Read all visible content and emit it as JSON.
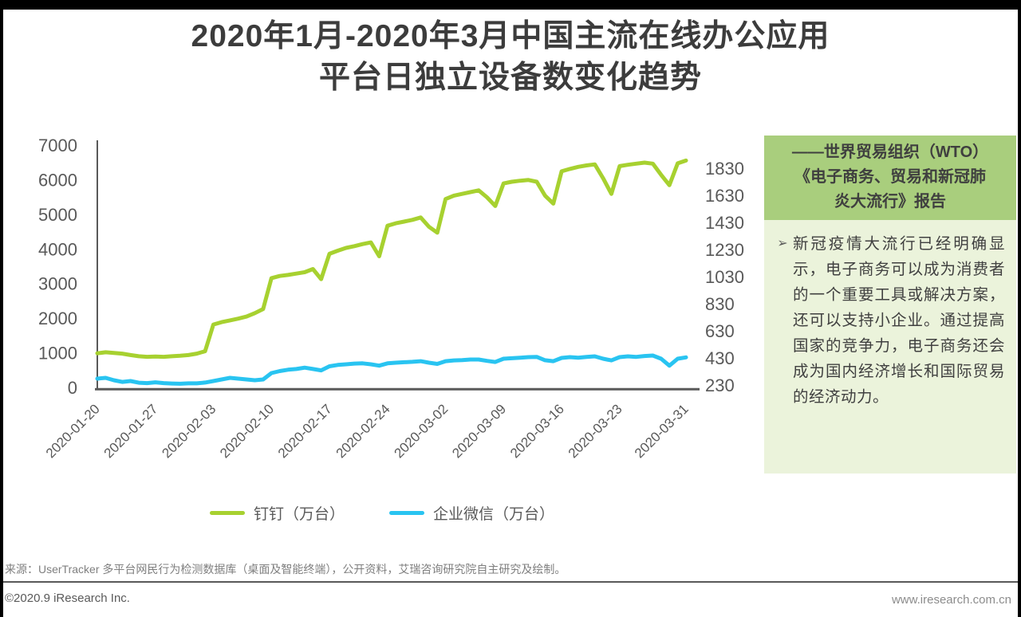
{
  "page": {
    "title_line1": "2020年1月-2020年3月中国主流在线办公应用",
    "title_line2": "平台日独立设备数变化趋势"
  },
  "sidebar": {
    "header_lines": [
      "——世界贸易组织（WTO）",
      "《电子商务、贸易和新冠肺",
      "炎大流行》报告"
    ],
    "bullet_char": "➢",
    "body": "新冠疫情大流行已经明确显示，电子商务可以成为消费者的一个重要工具或解决方案，还可以支持小企业。通过提高国家的竞争力，电子商务还会成为国内经济增长和国际贸易的经济动力。",
    "header_bg": "#a9ce7d",
    "body_bg": "#ebf3db"
  },
  "footer": {
    "source": "来源：UserTracker 多平台网民行为检测数据库（桌面及智能终端），公开资料，艾瑞咨询研究院自主研究及绘制。",
    "copyright": "©2020.9 iResearch Inc.",
    "website": "www.iresearch.com.cn"
  },
  "chart_data": {
    "type": "line",
    "title": "2020年1月-2020年3月中国主流在线办公应用平台日独立设备数变化趋势",
    "unit": "万台",
    "grid": false,
    "legend_position": "bottom",
    "left_axis": {
      "max": 7000,
      "min": 0,
      "ticks": [
        7000,
        6000,
        5000,
        4000,
        3000,
        2000,
        1000,
        0
      ]
    },
    "right_axis": {
      "min": 230,
      "step": 200,
      "ticks": [
        1830,
        1630,
        1430,
        1230,
        1030,
        830,
        630,
        430,
        230
      ]
    },
    "x_ticks": [
      {
        "label": "2020-01-20",
        "day": 0
      },
      {
        "label": "2020-01-27",
        "day": 7
      },
      {
        "label": "2020-02-03",
        "day": 14
      },
      {
        "label": "2020-02-10",
        "day": 21
      },
      {
        "label": "2020-02-17",
        "day": 28
      },
      {
        "label": "2020-02-24",
        "day": 35
      },
      {
        "label": "2020-03-02",
        "day": 42
      },
      {
        "label": "2020-03-09",
        "day": 49
      },
      {
        "label": "2020-03-16",
        "day": 56
      },
      {
        "label": "2020-03-23",
        "day": 63
      },
      {
        "label": "2020-03-31",
        "day": 71
      }
    ],
    "dates": [
      "2020-01-20",
      "2020-01-21",
      "2020-01-22",
      "2020-01-23",
      "2020-01-24",
      "2020-01-25",
      "2020-01-26",
      "2020-01-27",
      "2020-01-28",
      "2020-01-29",
      "2020-01-30",
      "2020-01-31",
      "2020-02-01",
      "2020-02-02",
      "2020-02-03",
      "2020-02-04",
      "2020-02-05",
      "2020-02-06",
      "2020-02-07",
      "2020-02-08",
      "2020-02-09",
      "2020-02-10",
      "2020-02-11",
      "2020-02-12",
      "2020-02-13",
      "2020-02-14",
      "2020-02-15",
      "2020-02-16",
      "2020-02-17",
      "2020-02-18",
      "2020-02-19",
      "2020-02-20",
      "2020-02-21",
      "2020-02-22",
      "2020-02-23",
      "2020-02-24",
      "2020-02-25",
      "2020-02-26",
      "2020-02-27",
      "2020-02-28",
      "2020-02-29",
      "2020-03-01",
      "2020-03-02",
      "2020-03-03",
      "2020-03-04",
      "2020-03-05",
      "2020-03-06",
      "2020-03-07",
      "2020-03-08",
      "2020-03-09",
      "2020-03-10",
      "2020-03-11",
      "2020-03-12",
      "2020-03-13",
      "2020-03-14",
      "2020-03-15",
      "2020-03-16",
      "2020-03-17",
      "2020-03-18",
      "2020-03-19",
      "2020-03-20",
      "2020-03-21",
      "2020-03-22",
      "2020-03-23",
      "2020-03-24",
      "2020-03-25",
      "2020-03-26",
      "2020-03-27",
      "2020-03-28",
      "2020-03-29",
      "2020-03-30",
      "2020-03-31"
    ],
    "series": [
      {
        "name": "钉钉（万台）",
        "id": "dingtalk",
        "color": "#a7d130",
        "axis": "left",
        "values": [
          1000,
          1030,
          1010,
          990,
          950,
          915,
          900,
          905,
          900,
          915,
          930,
          950,
          990,
          1060,
          1830,
          1900,
          1950,
          2000,
          2060,
          2160,
          2280,
          3170,
          3230,
          3260,
          3300,
          3340,
          3430,
          3140,
          3870,
          3960,
          4040,
          4090,
          4150,
          4200,
          3800,
          4680,
          4750,
          4800,
          4850,
          4920,
          4650,
          4480,
          5450,
          5550,
          5600,
          5650,
          5700,
          5500,
          5250,
          5900,
          5950,
          5980,
          6000,
          5950,
          5550,
          5320,
          6250,
          6320,
          6380,
          6420,
          6450,
          6050,
          5600,
          6400,
          6440,
          6470,
          6500,
          6470,
          6150,
          5850,
          6480,
          6560
        ]
      },
      {
        "name": "企业微信（万台）",
        "id": "wechat-work",
        "color": "#29c4f1",
        "axis": "right",
        "values": [
          279,
          285,
          267,
          255,
          261,
          249,
          246,
          252,
          246,
          243,
          241,
          244,
          244,
          250,
          261,
          273,
          285,
          279,
          273,
          267,
          273,
          320,
          335,
          345,
          350,
          360,
          350,
          340,
          370,
          380,
          385,
          390,
          392,
          385,
          375,
          392,
          397,
          400,
          403,
          408,
          397,
          388,
          408,
          414,
          416,
          420,
          420,
          410,
          402,
          426,
          430,
          434,
          438,
          440,
          415,
          408,
          432,
          438,
          434,
          440,
          444,
          426,
          414,
          438,
          444,
          440,
          446,
          450,
          426,
          375,
          426,
          436
        ]
      }
    ]
  }
}
